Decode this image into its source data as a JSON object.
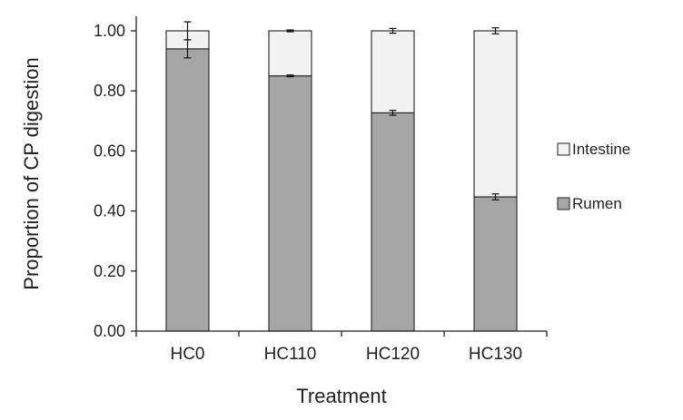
{
  "chart_data": {
    "type": "bar",
    "stacked": true,
    "title": "",
    "xlabel": "Treatment",
    "ylabel": "Proportion of CP digestion",
    "ylim": [
      0,
      1
    ],
    "yticks": [
      "0.00",
      "0.20",
      "0.40",
      "0.60",
      "0.80",
      "1.00"
    ],
    "grid": false,
    "legend_position": "right",
    "categories": [
      "HC0",
      "HC110",
      "HC120",
      "HC130"
    ],
    "series": [
      {
        "name": "Rumen",
        "color": "#a6a6a6",
        "values": [
          0.94,
          0.85,
          0.727,
          0.447
        ],
        "errors": [
          0.03,
          0.003,
          0.008,
          0.01
        ]
      },
      {
        "name": "Intestine",
        "color": "#f2f2f2",
        "values": [
          0.06,
          0.15,
          0.273,
          0.553
        ],
        "errors": [
          0.03,
          0.003,
          0.008,
          0.01
        ]
      }
    ],
    "legend": [
      {
        "name": "Intestine",
        "color": "#f2f2f2"
      },
      {
        "name": "Rumen",
        "color": "#a6a6a6"
      }
    ]
  }
}
